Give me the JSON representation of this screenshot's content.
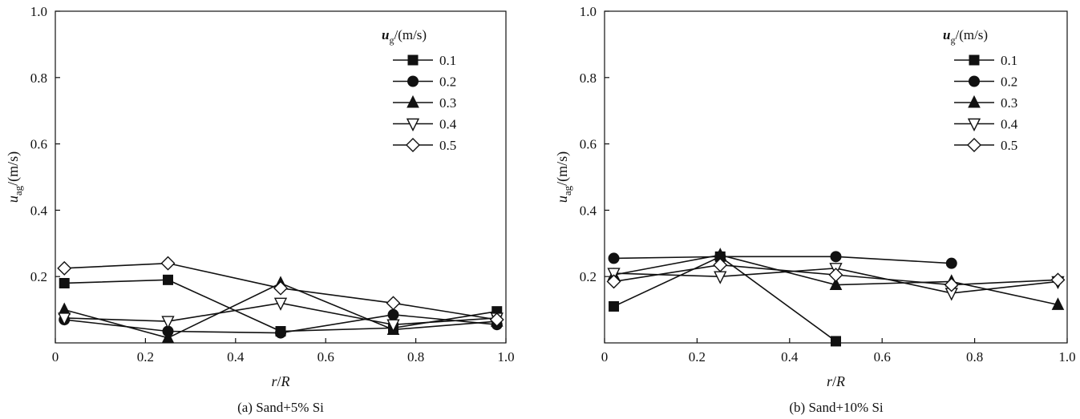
{
  "chart_data": [
    {
      "type": "line",
      "caption": "(a) Sand+5% Si",
      "xlabel": {
        "main": "r",
        "sep": "/",
        "tail": "R"
      },
      "ylabel": {
        "main": "u",
        "sub": "ag",
        "unit": "/(m/s)"
      },
      "xlim": [
        0,
        1.0
      ],
      "ylim": [
        0,
        1.0
      ],
      "xticks": [
        "0",
        "0.2",
        "0.4",
        "0.6",
        "0.8",
        "1.0"
      ],
      "yticks": [
        "0.2",
        "0.4",
        "0.6",
        "0.8",
        "1.0"
      ],
      "legend": {
        "title_main": "u",
        "title_sub": "g",
        "title_unit": "/(m/s)",
        "position": "top-right"
      },
      "series": [
        {
          "name": "0.1",
          "marker": "square",
          "x": [
            0.02,
            0.25,
            0.5,
            0.75,
            0.98
          ],
          "y": [
            0.18,
            0.19,
            0.035,
            0.045,
            0.095
          ]
        },
        {
          "name": "0.2",
          "marker": "circle",
          "x": [
            0.02,
            0.25,
            0.5,
            0.75,
            0.98
          ],
          "y": [
            0.07,
            0.035,
            0.03,
            0.085,
            0.055
          ]
        },
        {
          "name": "0.3",
          "marker": "triangle-up",
          "x": [
            0.02,
            0.25,
            0.5,
            0.75,
            0.98
          ],
          "y": [
            0.1,
            0.015,
            0.18,
            0.04,
            0.065
          ]
        },
        {
          "name": "0.4",
          "marker": "triangle-down",
          "x": [
            0.02,
            0.25,
            0.5,
            0.75,
            0.98
          ],
          "y": [
            0.075,
            0.065,
            0.12,
            0.055,
            0.075
          ]
        },
        {
          "name": "0.5",
          "marker": "diamond",
          "x": [
            0.02,
            0.25,
            0.5,
            0.75,
            0.98
          ],
          "y": [
            0.225,
            0.24,
            0.165,
            0.12,
            0.07
          ]
        }
      ]
    },
    {
      "type": "line",
      "caption": "(b) Sand+10% Si",
      "xlabel": {
        "main": "r",
        "sep": "/",
        "tail": "R"
      },
      "ylabel": {
        "main": "u",
        "sub": "ag",
        "unit": "/(m/s)"
      },
      "xlim": [
        0,
        1.0
      ],
      "ylim": [
        0,
        1.0
      ],
      "xticks": [
        "0",
        "0.2",
        "0.4",
        "0.6",
        "0.8",
        "1.0"
      ],
      "yticks": [
        "0.2",
        "0.4",
        "0.6",
        "0.8",
        "1.0"
      ],
      "legend": {
        "title_main": "u",
        "title_sub": "g",
        "title_unit": "/(m/s)",
        "position": "top-right"
      },
      "series": [
        {
          "name": "0.1",
          "marker": "square",
          "x": [
            0.02,
            0.25,
            0.5
          ],
          "y": [
            0.11,
            0.26,
            0.005
          ]
        },
        {
          "name": "0.2",
          "marker": "circle",
          "x": [
            0.02,
            0.25,
            0.5,
            0.75
          ],
          "y": [
            0.255,
            0.26,
            0.26,
            0.24
          ]
        },
        {
          "name": "0.3",
          "marker": "triangle-up",
          "x": [
            0.02,
            0.25,
            0.5,
            0.75,
            0.98
          ],
          "y": [
            0.205,
            0.265,
            0.175,
            0.185,
            0.115
          ]
        },
        {
          "name": "0.4",
          "marker": "triangle-down",
          "x": [
            0.02,
            0.25,
            0.5,
            0.75,
            0.98
          ],
          "y": [
            0.21,
            0.2,
            0.225,
            0.15,
            0.185
          ]
        },
        {
          "name": "0.5",
          "marker": "diamond",
          "x": [
            0.02,
            0.25,
            0.5,
            0.75,
            0.98
          ],
          "y": [
            0.185,
            0.235,
            0.205,
            0.175,
            0.19
          ]
        }
      ]
    }
  ]
}
